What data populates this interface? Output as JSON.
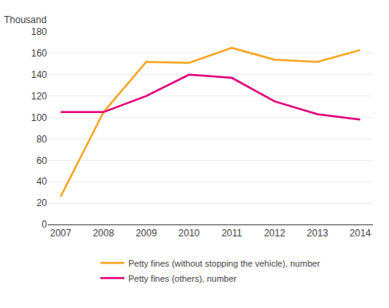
{
  "chart_data": {
    "type": "line",
    "ylabel": "Thousand",
    "x": [
      2007,
      2008,
      2009,
      2010,
      2011,
      2012,
      2013,
      2014
    ],
    "series": [
      {
        "name": "Petty fines (without stopping the vehicle), number",
        "color": "#F5A623",
        "values": [
          26,
          105,
          152,
          151,
          165,
          154,
          152,
          163
        ]
      },
      {
        "name": "Petty fines (others), number",
        "color": "#E0007A",
        "values": [
          105,
          105,
          120,
          140,
          137,
          115,
          103,
          98
        ]
      }
    ],
    "xlim": [
      2006.7,
      2014.3
    ],
    "xticks": [
      2007,
      2008,
      2009,
      2010,
      2011,
      2012,
      2013,
      2014
    ],
    "ylim": [
      0,
      180
    ],
    "yticks": [
      0,
      20,
      40,
      60,
      80,
      100,
      120,
      140,
      160,
      180
    ],
    "grid": "y",
    "legend": "bottom"
  }
}
